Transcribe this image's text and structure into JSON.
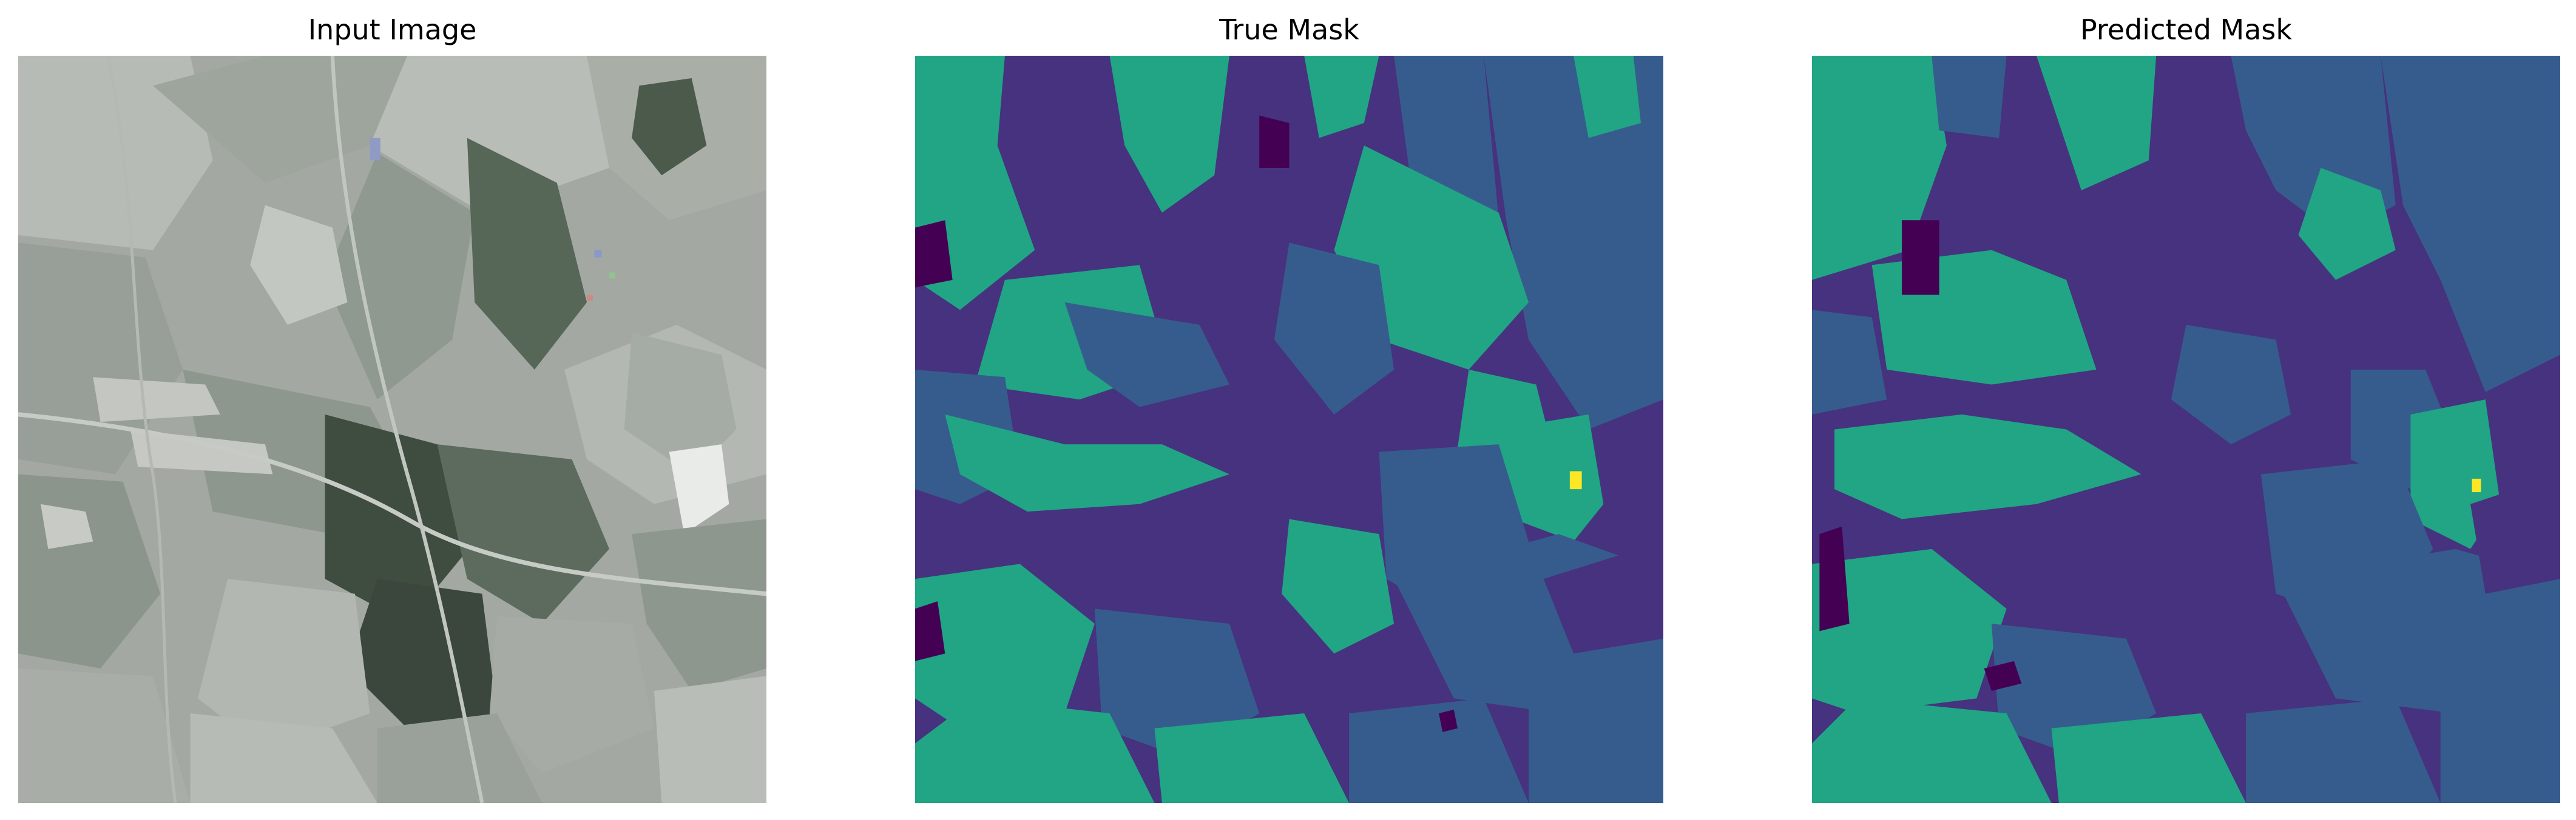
{
  "panels": [
    {
      "title": "Input Image",
      "content": "aerial-photo"
    },
    {
      "title": "True Mask",
      "content": "segmentation-mask"
    },
    {
      "title": "Predicted Mask",
      "content": "segmentation-mask"
    }
  ],
  "mask_palette": {
    "dark": "#440154",
    "purple": "#46327e",
    "blue": "#365c8d",
    "teal": "#21a585",
    "yellow": "#fde725"
  },
  "photo_palette": {
    "light": "#b8bcb6",
    "mid": "#9aa19a",
    "field": "#8d968d",
    "dark": "#3e4a3f",
    "pale": "#c9ccc6"
  }
}
